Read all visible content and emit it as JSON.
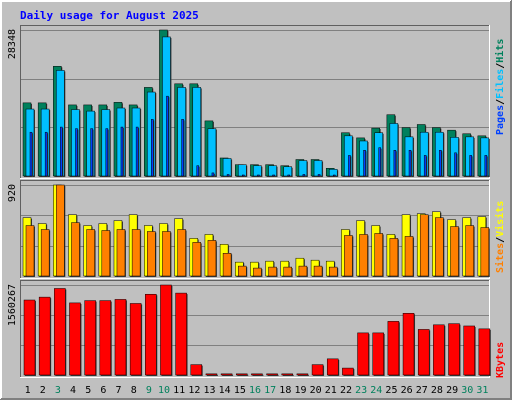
{
  "title": "Daily usage for August 2025",
  "colors": {
    "hits": "#00805c",
    "files": "#00c0ff",
    "pages": "#0040ff",
    "visits": "#ffff00",
    "sites": "#ff8000",
    "kbytes": "#ff0000",
    "weekday_label": "#000000",
    "weekend_label": "#00805c",
    "title": "#0000ff"
  },
  "chart_data": [
    {
      "type": "bar",
      "panel": "hits-files-pages",
      "categories": [
        "1",
        "2",
        "3",
        "4",
        "5",
        "6",
        "7",
        "8",
        "9",
        "10",
        "11",
        "12",
        "13",
        "14",
        "15",
        "16",
        "17",
        "18",
        "19",
        "20",
        "21",
        "22",
        "23",
        "24",
        "25",
        "26",
        "27",
        "28",
        "29",
        "30",
        "31"
      ],
      "y_tick_label": "28348",
      "ylim": [
        0,
        28348
      ],
      "series": [
        {
          "name": "Hits",
          "values": [
            14200,
            14200,
            21300,
            13800,
            13800,
            13800,
            14300,
            13800,
            17200,
            28348,
            17900,
            17900,
            10700,
            3500,
            2200,
            2200,
            2200,
            2000,
            3200,
            3200,
            1500,
            8400,
            7400,
            9300,
            11900,
            9400,
            10000,
            9400,
            8900,
            8200,
            7800
          ]
        },
        {
          "name": "Files",
          "values": [
            13000,
            13000,
            20500,
            12900,
            12600,
            12900,
            13200,
            13200,
            16300,
            27000,
            17200,
            17200,
            9200,
            3400,
            2200,
            2000,
            2000,
            1800,
            3000,
            3000,
            1300,
            7800,
            6800,
            8400,
            10200,
            7600,
            8500,
            8500,
            7500,
            7600,
            7400
          ]
        },
        {
          "name": "Pages",
          "values": [
            8500,
            8500,
            9500,
            9200,
            9200,
            9200,
            9500,
            9500,
            11000,
            15500,
            11000,
            2000,
            600,
            300,
            200,
            200,
            200,
            200,
            300,
            300,
            100,
            4000,
            5000,
            5500,
            5000,
            5000,
            4000,
            5000,
            4500,
            4000,
            4000
          ]
        }
      ]
    },
    {
      "type": "bar",
      "panel": "visits-sites",
      "categories": [
        "1",
        "2",
        "3",
        "4",
        "5",
        "6",
        "7",
        "8",
        "9",
        "10",
        "11",
        "12",
        "13",
        "14",
        "15",
        "16",
        "17",
        "18",
        "19",
        "20",
        "21",
        "22",
        "23",
        "24",
        "25",
        "26",
        "27",
        "28",
        "29",
        "30",
        "31"
      ],
      "y_tick_label": "920",
      "ylim": [
        0,
        920
      ],
      "series": [
        {
          "name": "Visits",
          "values": [
            590,
            530,
            920,
            620,
            510,
            530,
            560,
            620,
            510,
            530,
            580,
            380,
            420,
            320,
            140,
            140,
            150,
            150,
            180,
            160,
            150,
            470,
            560,
            510,
            420,
            620,
            630,
            650,
            570,
            590,
            600
          ]
        },
        {
          "name": "Sites",
          "values": [
            510,
            470,
            920,
            540,
            470,
            460,
            470,
            470,
            450,
            450,
            470,
            340,
            360,
            230,
            100,
            80,
            90,
            90,
            100,
            100,
            90,
            410,
            420,
            430,
            380,
            400,
            620,
            590,
            500,
            510,
            490
          ]
        }
      ]
    },
    {
      "type": "bar",
      "panel": "kbytes",
      "categories": [
        "1",
        "2",
        "3",
        "4",
        "5",
        "6",
        "7",
        "8",
        "9",
        "10",
        "11",
        "12",
        "13",
        "14",
        "15",
        "16",
        "17",
        "18",
        "19",
        "20",
        "21",
        "22",
        "23",
        "24",
        "25",
        "26",
        "27",
        "28",
        "29",
        "30",
        "31"
      ],
      "y_tick_label": "1560267",
      "ylim": [
        0,
        1560267
      ],
      "series": [
        {
          "name": "KBytes",
          "values": [
            1300000,
            1350000,
            1500000,
            1250000,
            1290000,
            1290000,
            1310000,
            1240000,
            1400000,
            1560267,
            1420000,
            180000,
            20000,
            20000,
            20000,
            20000,
            20000,
            20000,
            20000,
            180000,
            280000,
            120000,
            730000,
            730000,
            930000,
            1070000,
            790000,
            870000,
            890000,
            850000,
            800000
          ]
        }
      ]
    }
  ],
  "side_labels": {
    "top": [
      {
        "text": "Pages",
        "color": "#0040ff"
      },
      {
        "text": "/",
        "color": "#000000"
      },
      {
        "text": "Files",
        "color": "#00c0ff"
      },
      {
        "text": "/",
        "color": "#000000"
      },
      {
        "text": "Hits",
        "color": "#00805c"
      }
    ],
    "mid": [
      {
        "text": "Sites",
        "color": "#ff8000"
      },
      {
        "text": "/",
        "color": "#000000"
      },
      {
        "text": "Visits",
        "color": "#ffff00"
      }
    ],
    "bot": [
      {
        "text": "KBytes",
        "color": "#ff0000"
      }
    ]
  },
  "weekend_days": [
    "3",
    "9",
    "10",
    "16",
    "17",
    "23",
    "24",
    "30",
    "31"
  ]
}
